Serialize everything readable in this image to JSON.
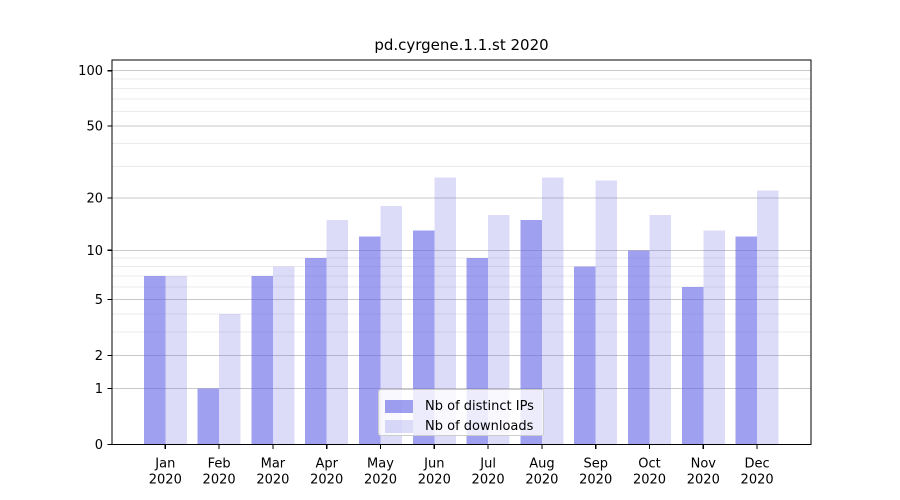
{
  "chart_data": {
    "type": "bar",
    "title": "pd.cyrgene.1.1.st 2020",
    "categories": [
      "Jan",
      "Feb",
      "Mar",
      "Apr",
      "May",
      "Jun",
      "Jul",
      "Aug",
      "Sep",
      "Oct",
      "Nov",
      "Dec"
    ],
    "year_label": "2020",
    "series": [
      {
        "name": "Nb of distinct IPs",
        "values": [
          7,
          1,
          7,
          9,
          12,
          13,
          9,
          15,
          8,
          10,
          6,
          12
        ],
        "color": "#6666e6",
        "opacity": 0.62
      },
      {
        "name": "Nb of downloads",
        "values": [
          7,
          4,
          8,
          15,
          18,
          26,
          16,
          26,
          25,
          16,
          13,
          22
        ],
        "color": "#6666e6",
        "opacity": 0.23
      }
    ],
    "xlabel": "",
    "ylabel": "",
    "yscale": "log1p",
    "yticks": [
      0,
      1,
      2,
      5,
      10,
      20,
      50,
      100
    ],
    "minor_gridlines": [
      3,
      4,
      6,
      7,
      8,
      9,
      30,
      40,
      60,
      70,
      80,
      90
    ],
    "ylim": [
      0,
      115
    ],
    "grid": "on",
    "legend_position": "lower center"
  },
  "colors": {
    "grid_major": "#c9c9c9",
    "grid_minor": "#ebebeb",
    "spine": "#000000",
    "text": "#000000",
    "legend_border": "#cccccc"
  }
}
